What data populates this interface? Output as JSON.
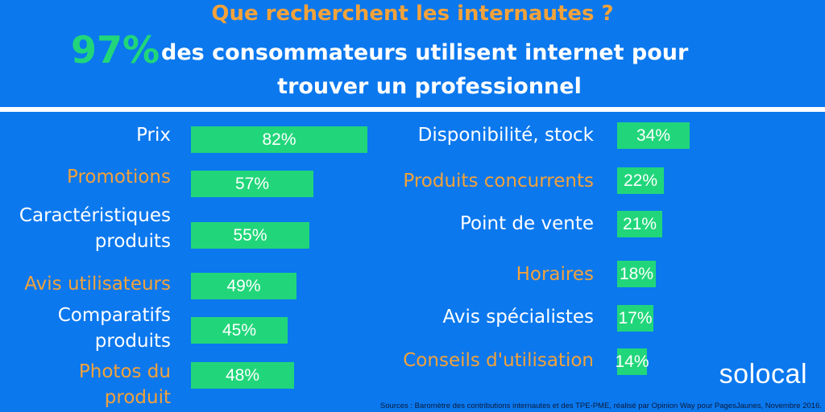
{
  "header": {
    "title": "Que recherchent les internautes ?",
    "headline_value": "97%",
    "headline_line1": "des consommateurs utilisent internet pour",
    "headline_line2": "trouver un professionnel"
  },
  "footer": {
    "source": "Sources : Baromètre des contributions internautes et des TPE-PME, réalisé par Opinion Way pour PagesJaunes, Novembre 2016.",
    "logo": "solocal"
  },
  "colors": {
    "background": "#0b78ee",
    "bar": "#21d67a",
    "accent_orange": "#f3a23a",
    "text_white": "#ffffff"
  },
  "chart_data": [
    {
      "type": "bar",
      "orientation": "horizontal",
      "value_unit": "%",
      "categories": [
        "Prix",
        "Promotions",
        "Caractéristiques\nproduits",
        "Avis utilisateurs",
        "Comparatifs\nproduits",
        "Photos du\nproduit"
      ],
      "values": [
        82,
        57,
        55,
        49,
        45,
        48
      ],
      "labels": [
        "82%",
        "57%",
        "55%",
        "49%",
        "45%",
        "48%"
      ],
      "label_colors": [
        "white",
        "orange",
        "white",
        "orange",
        "white",
        "orange"
      ]
    },
    {
      "type": "bar",
      "orientation": "horizontal",
      "value_unit": "%",
      "categories": [
        "Disponibilité, stock",
        "Produits concurrents",
        "Point de vente",
        "Horaires",
        "Avis spécialistes",
        "Conseils d'utilisation"
      ],
      "values": [
        34,
        22,
        21,
        18,
        17,
        14
      ],
      "labels": [
        "34%",
        "22%",
        "21%",
        "18%",
        "17%",
        "14%"
      ],
      "label_colors": [
        "white",
        "orange",
        "white",
        "orange",
        "white",
        "orange"
      ]
    }
  ]
}
